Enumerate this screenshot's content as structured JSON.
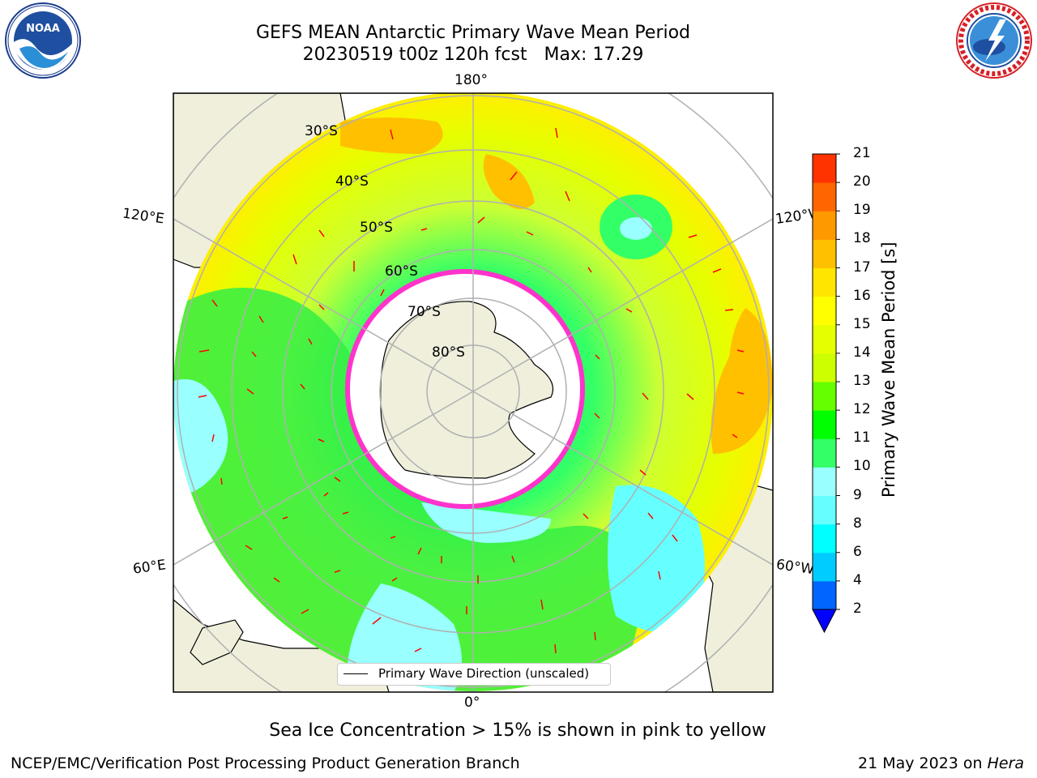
{
  "title": {
    "line1": "GEFS MEAN Antarctic Primary Wave Mean Period",
    "line2": "20230519 t00z 120h fcst   Max: 17.29"
  },
  "map": {
    "projection": "south-polar-stereographic",
    "longitude_labels": {
      "top": "180°",
      "bottom": "0°",
      "left_upper": "120°E",
      "left_lower": "60°E",
      "right_upper": "120°W",
      "right_lower": "60°W"
    },
    "latitude_labels": [
      "30°S",
      "40°S",
      "50°S",
      "60°S",
      "70°S",
      "80°S"
    ],
    "legend": "Primary Wave Direction (unscaled)",
    "colors": {
      "land": "#efefdc",
      "ocean_dominant": "#ccff33",
      "ice": "#ffffff",
      "ice_edge": "#ff33cc",
      "arrows": "#ff0000",
      "grid": "#b0b0b0"
    }
  },
  "colorbar": {
    "label": "Primary Wave Mean Period [s]",
    "levels": [
      "2",
      "4",
      "6",
      "8",
      "9",
      "10",
      "11",
      "12",
      "13",
      "14",
      "15",
      "16",
      "17",
      "18",
      "19",
      "20",
      "21"
    ],
    "colors": [
      "#0066ff",
      "#00ccff",
      "#00ffff",
      "#66ffff",
      "#99ffff",
      "#33ff66",
      "#00ff00",
      "#66ff00",
      "#ccff00",
      "#e6ff00",
      "#ffff00",
      "#ffe600",
      "#ffc000",
      "#ff9900",
      "#ff6600",
      "#ff3300"
    ],
    "extend_color": "#0000ff"
  },
  "notes": {
    "sea_ice": "Sea Ice Concentration > 15% is shown in pink to yellow",
    "credit": "NCEP/EMC/Verification Post Processing Product Generation Branch",
    "date": "21 May 2023 on ",
    "host": "Hera"
  },
  "logos": {
    "left": "NOAA",
    "right": "NATIONAL WEATHER SERVICE"
  }
}
